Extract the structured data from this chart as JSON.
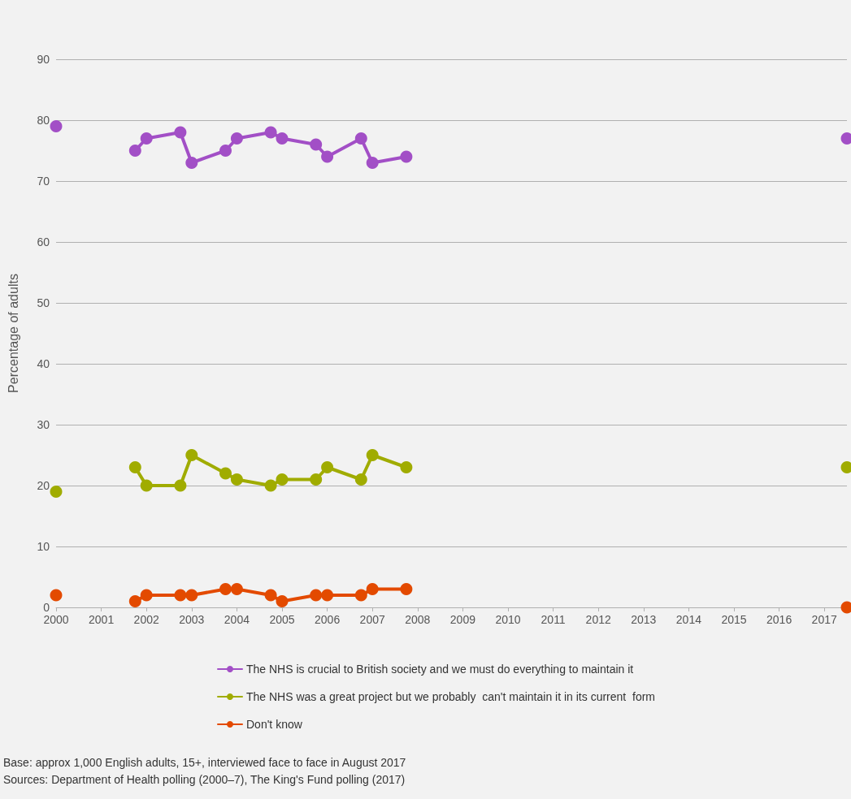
{
  "chart_data": {
    "type": "line",
    "ylabel": "Percentage of adults",
    "x": [
      2000,
      2001,
      2001.75,
      2002,
      2002.75,
      2003,
      2003.75,
      2004,
      2004.75,
      2005,
      2005.75,
      2006,
      2006.75,
      2007,
      2007.75,
      2010,
      2017.5
    ],
    "xlim": [
      2000,
      2017.5
    ],
    "xticks": [
      2000,
      2001,
      2002,
      2003,
      2004,
      2005,
      2006,
      2007,
      2008,
      2009,
      2010,
      2011,
      2012,
      2013,
      2014,
      2015,
      2016,
      2017
    ],
    "ylim": [
      0,
      90
    ],
    "yticks": [
      0,
      10,
      20,
      30,
      40,
      50,
      60,
      70,
      80,
      90
    ],
    "grid": "y",
    "legend": "bottom",
    "marker": "circle",
    "line_style": "solid",
    "series": [
      {
        "name": "The NHS is crucial to British society and we must do everything to maintain it",
        "color": "#a24fc6",
        "values": [
          79,
          null,
          75,
          77,
          78,
          73,
          75,
          77,
          78,
          77,
          76,
          74,
          77,
          73,
          74,
          null,
          77
        ]
      },
      {
        "name": "The NHS was a great project but we probably  can't maintain it in its current  form",
        "color": "#a0ac00",
        "values": [
          19,
          null,
          23,
          20,
          20,
          25,
          22,
          21,
          20,
          21,
          21,
          23,
          21,
          25,
          23,
          null,
          23
        ]
      },
      {
        "name": "Don't know",
        "color": "#e34a00",
        "values": [
          2,
          null,
          1,
          2,
          2,
          2,
          3,
          3,
          2,
          1,
          2,
          2,
          2,
          3,
          3,
          null,
          0
        ]
      }
    ],
    "annotations": [
      "Base: approx 1,000 English adults, 15+, interviewed face to face in August 2017",
      "Sources: Department of Health polling (2000–7), The King's Fund polling (2017)"
    ]
  }
}
